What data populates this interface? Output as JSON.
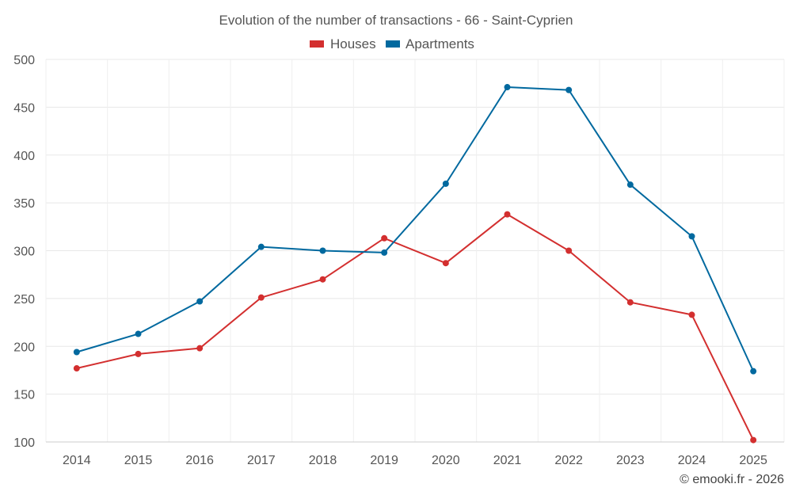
{
  "chart_data": {
    "type": "line",
    "title": "Evolution of the number of transactions - 66 - Saint-Cyprien",
    "categories": [
      "2014",
      "2015",
      "2016",
      "2017",
      "2018",
      "2019",
      "2020",
      "2021",
      "2022",
      "2023",
      "2024",
      "2025"
    ],
    "series": [
      {
        "name": "Houses",
        "color": "#d32f2f",
        "values": [
          177,
          192,
          198,
          251,
          270,
          313,
          287,
          338,
          300,
          246,
          233,
          102
        ]
      },
      {
        "name": "Apartments",
        "color": "#01699f",
        "values": [
          194,
          213,
          247,
          304,
          300,
          298,
          370,
          471,
          468,
          369,
          315,
          174
        ]
      }
    ],
    "ylim": [
      100,
      500
    ],
    "yticks": [
      100,
      150,
      200,
      250,
      300,
      350,
      400,
      450,
      500
    ],
    "xlabel": "",
    "ylabel": "",
    "grid": true,
    "legend_position": "top-center",
    "credit": "© emooki.fr - 2026"
  }
}
